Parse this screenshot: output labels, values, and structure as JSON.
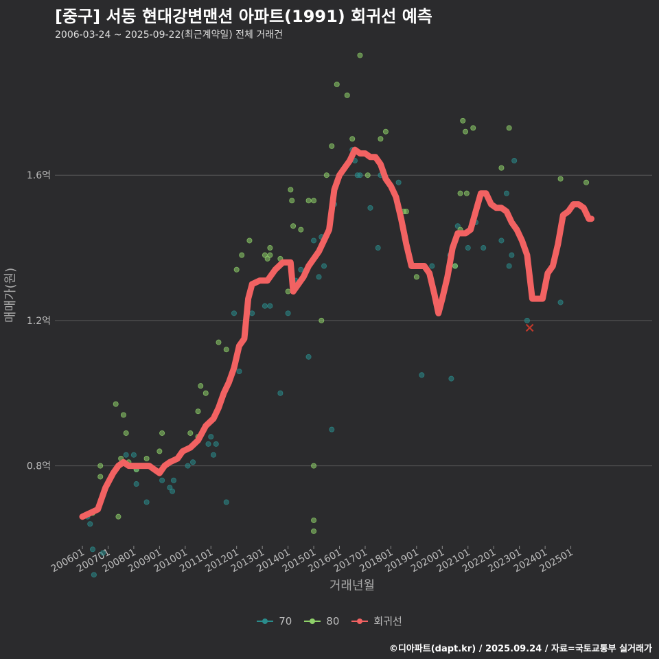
{
  "title": "[중구] 서동 현대강변맨션 아파트(1991) 회귀선 예측",
  "subtitle": "2006-03-24 ~ 2025-09-22(최근계약일) 전체 거래건",
  "credit": "©디아파트(dapt.kr) / 2025.09.24 / 자료=국토교통부 실거래가",
  "colors": {
    "s70": "#2a8c8c",
    "s80": "#8fd16a",
    "reg": "#f26262",
    "bg": "#2b2b2d",
    "grid": "#5a5a5a"
  },
  "legend": [
    {
      "label": "70",
      "color": "#2a8c8c"
    },
    {
      "label": "80",
      "color": "#8fd16a"
    },
    {
      "label": "회귀선",
      "color": "#f26262"
    }
  ],
  "chart_data": {
    "type": "scatter",
    "xlabel": "거래년월",
    "ylabel": "매매가(원)",
    "xlim": [
      2006.0,
      2025.9
    ],
    "ylim": [
      0.58,
      1.95
    ],
    "yticks": [
      {
        "value": 0.8,
        "label": "0.8억"
      },
      {
        "value": 1.2,
        "label": "1.2억"
      },
      {
        "value": 1.6,
        "label": "1.6억"
      }
    ],
    "xticks": [
      {
        "value": 2006.0,
        "label": "200601"
      },
      {
        "value": 2007.0,
        "label": "200701"
      },
      {
        "value": 2008.0,
        "label": "200801"
      },
      {
        "value": 2009.0,
        "label": "200901"
      },
      {
        "value": 2010.0,
        "label": "201001"
      },
      {
        "value": 2011.0,
        "label": "201101"
      },
      {
        "value": 2012.0,
        "label": "201201"
      },
      {
        "value": 2013.0,
        "label": "201301"
      },
      {
        "value": 2014.0,
        "label": "201401"
      },
      {
        "value": 2015.0,
        "label": "201501"
      },
      {
        "value": 2016.0,
        "label": "201601"
      },
      {
        "value": 2017.0,
        "label": "201701"
      },
      {
        "value": 2018.0,
        "label": "201801"
      },
      {
        "value": 2019.0,
        "label": "201901"
      },
      {
        "value": 2020.0,
        "label": "202001"
      },
      {
        "value": 2021.0,
        "label": "202101"
      },
      {
        "value": 2022.0,
        "label": "202201"
      },
      {
        "value": 2023.0,
        "label": "202301"
      },
      {
        "value": 2024.0,
        "label": "202401"
      },
      {
        "value": 2025.0,
        "label": "202501"
      }
    ],
    "series": [
      {
        "name": "70",
        "points": [
          [
            2006.2,
            0.66
          ],
          [
            2006.3,
            0.64
          ],
          [
            2006.4,
            0.57
          ],
          [
            2006.45,
            0.5
          ],
          [
            2006.6,
            0.68
          ],
          [
            2006.8,
            0.56
          ],
          [
            2007.7,
            0.83
          ],
          [
            2008.0,
            0.83
          ],
          [
            2008.1,
            0.79
          ],
          [
            2008.1,
            0.75
          ],
          [
            2008.5,
            0.7
          ],
          [
            2009.1,
            0.76
          ],
          [
            2009.4,
            0.74
          ],
          [
            2009.5,
            0.73
          ],
          [
            2009.55,
            0.76
          ],
          [
            2010.1,
            0.8
          ],
          [
            2010.3,
            0.81
          ],
          [
            2010.9,
            0.86
          ],
          [
            2011.0,
            0.88
          ],
          [
            2011.1,
            0.83
          ],
          [
            2011.2,
            0.86
          ],
          [
            2011.6,
            0.7
          ],
          [
            2011.9,
            1.22
          ],
          [
            2012.1,
            1.06
          ],
          [
            2012.6,
            1.22
          ],
          [
            2013.1,
            1.24
          ],
          [
            2013.3,
            1.24
          ],
          [
            2013.7,
            1.0
          ],
          [
            2014.0,
            1.22
          ],
          [
            2014.3,
            1.31
          ],
          [
            2014.5,
            1.34
          ],
          [
            2014.8,
            1.1
          ],
          [
            2015.0,
            1.42
          ],
          [
            2015.1,
            1.38
          ],
          [
            2015.2,
            1.32
          ],
          [
            2015.3,
            1.43
          ],
          [
            2015.4,
            1.35
          ],
          [
            2015.7,
            0.9
          ],
          [
            2015.8,
            1.56
          ],
          [
            2015.8,
            1.52
          ],
          [
            2016.5,
            1.67
          ],
          [
            2016.6,
            1.64
          ],
          [
            2016.7,
            1.6
          ],
          [
            2016.8,
            1.6
          ],
          [
            2017.2,
            1.51
          ],
          [
            2017.5,
            1.4
          ],
          [
            2017.6,
            1.6
          ],
          [
            2018.3,
            1.58
          ],
          [
            2019.2,
            1.05
          ],
          [
            2019.6,
            1.35
          ],
          [
            2020.3,
            1.38
          ],
          [
            2020.35,
            1.04
          ],
          [
            2020.5,
            1.35
          ],
          [
            2020.6,
            1.46
          ],
          [
            2021.0,
            1.4
          ],
          [
            2021.3,
            1.47
          ],
          [
            2021.6,
            1.4
          ],
          [
            2022.3,
            1.42
          ],
          [
            2022.5,
            1.55
          ],
          [
            2022.6,
            1.35
          ],
          [
            2022.7,
            1.38
          ],
          [
            2022.8,
            1.64
          ],
          [
            2023.3,
            1.2
          ],
          [
            2024.6,
            1.25
          ]
        ]
      },
      {
        "name": "80",
        "points": [
          [
            2006.4,
            0.67
          ],
          [
            2006.7,
            0.8
          ],
          [
            2006.7,
            0.77
          ],
          [
            2007.3,
            0.97
          ],
          [
            2007.4,
            0.66
          ],
          [
            2007.5,
            0.82
          ],
          [
            2007.6,
            0.94
          ],
          [
            2007.7,
            0.89
          ],
          [
            2007.8,
            0.81
          ],
          [
            2008.1,
            0.79
          ],
          [
            2008.5,
            0.82
          ],
          [
            2009.0,
            0.84
          ],
          [
            2009.1,
            0.89
          ],
          [
            2010.2,
            0.89
          ],
          [
            2010.5,
            0.88
          ],
          [
            2010.5,
            0.95
          ],
          [
            2010.6,
            1.02
          ],
          [
            2010.8,
            1.0
          ],
          [
            2011.3,
            1.14
          ],
          [
            2011.6,
            1.12
          ],
          [
            2012.0,
            1.34
          ],
          [
            2012.2,
            1.38
          ],
          [
            2012.5,
            1.42
          ],
          [
            2013.1,
            1.38
          ],
          [
            2013.2,
            1.37
          ],
          [
            2013.3,
            1.38
          ],
          [
            2013.3,
            1.4
          ],
          [
            2013.7,
            1.37
          ],
          [
            2014.0,
            1.28
          ],
          [
            2014.1,
            1.56
          ],
          [
            2014.15,
            1.53
          ],
          [
            2014.2,
            1.46
          ],
          [
            2014.5,
            1.45
          ],
          [
            2014.8,
            1.53
          ],
          [
            2015.0,
            1.53
          ],
          [
            2015.0,
            0.65
          ],
          [
            2015.0,
            0.62
          ],
          [
            2015.0,
            0.8
          ],
          [
            2015.3,
            1.2
          ],
          [
            2015.5,
            1.6
          ],
          [
            2015.7,
            1.68
          ],
          [
            2015.9,
            1.85
          ],
          [
            2016.3,
            1.82
          ],
          [
            2016.5,
            1.7
          ],
          [
            2016.8,
            1.93
          ],
          [
            2017.1,
            1.6
          ],
          [
            2017.6,
            1.7
          ],
          [
            2017.8,
            1.72
          ],
          [
            2018.5,
            1.5
          ],
          [
            2018.6,
            1.5
          ],
          [
            2019.0,
            1.32
          ],
          [
            2020.5,
            1.35
          ],
          [
            2020.7,
            1.45
          ],
          [
            2020.7,
            1.55
          ],
          [
            2020.8,
            1.75
          ],
          [
            2020.9,
            1.72
          ],
          [
            2020.95,
            1.55
          ],
          [
            2021.2,
            1.73
          ],
          [
            2022.3,
            1.62
          ],
          [
            2022.6,
            1.73
          ],
          [
            2024.6,
            1.59
          ],
          [
            2025.6,
            1.58
          ]
        ]
      }
    ],
    "regression": [
      [
        2006.0,
        0.66
      ],
      [
        2006.3,
        0.67
      ],
      [
        2006.6,
        0.68
      ],
      [
        2006.9,
        0.74
      ],
      [
        2007.2,
        0.78
      ],
      [
        2007.4,
        0.8
      ],
      [
        2007.6,
        0.81
      ],
      [
        2007.8,
        0.8
      ],
      [
        2008.0,
        0.8
      ],
      [
        2008.3,
        0.8
      ],
      [
        2008.6,
        0.8
      ],
      [
        2008.8,
        0.79
      ],
      [
        2009.0,
        0.78
      ],
      [
        2009.2,
        0.8
      ],
      [
        2009.4,
        0.81
      ],
      [
        2009.7,
        0.82
      ],
      [
        2009.9,
        0.84
      ],
      [
        2010.2,
        0.85
      ],
      [
        2010.5,
        0.87
      ],
      [
        2010.8,
        0.91
      ],
      [
        2011.1,
        0.93
      ],
      [
        2011.3,
        0.96
      ],
      [
        2011.5,
        1.0
      ],
      [
        2011.7,
        1.03
      ],
      [
        2011.9,
        1.07
      ],
      [
        2012.1,
        1.13
      ],
      [
        2012.3,
        1.15
      ],
      [
        2012.45,
        1.26
      ],
      [
        2012.6,
        1.3
      ],
      [
        2012.9,
        1.31
      ],
      [
        2013.2,
        1.31
      ],
      [
        2013.5,
        1.34
      ],
      [
        2013.8,
        1.36
      ],
      [
        2014.1,
        1.36
      ],
      [
        2014.2,
        1.28
      ],
      [
        2014.4,
        1.3
      ],
      [
        2014.6,
        1.32
      ],
      [
        2014.8,
        1.35
      ],
      [
        2015.0,
        1.37
      ],
      [
        2015.2,
        1.39
      ],
      [
        2015.4,
        1.42
      ],
      [
        2015.6,
        1.45
      ],
      [
        2015.8,
        1.56
      ],
      [
        2016.0,
        1.6
      ],
      [
        2016.2,
        1.62
      ],
      [
        2016.4,
        1.64
      ],
      [
        2016.6,
        1.67
      ],
      [
        2016.8,
        1.66
      ],
      [
        2017.0,
        1.66
      ],
      [
        2017.2,
        1.65
      ],
      [
        2017.4,
        1.65
      ],
      [
        2017.6,
        1.63
      ],
      [
        2017.8,
        1.59
      ],
      [
        2018.0,
        1.57
      ],
      [
        2018.2,
        1.54
      ],
      [
        2018.4,
        1.48
      ],
      [
        2018.6,
        1.41
      ],
      [
        2018.8,
        1.35
      ],
      [
        2019.0,
        1.35
      ],
      [
        2019.3,
        1.35
      ],
      [
        2019.5,
        1.33
      ],
      [
        2019.7,
        1.27
      ],
      [
        2019.85,
        1.22
      ],
      [
        2020.0,
        1.26
      ],
      [
        2020.2,
        1.32
      ],
      [
        2020.4,
        1.4
      ],
      [
        2020.6,
        1.44
      ],
      [
        2020.9,
        1.44
      ],
      [
        2021.1,
        1.45
      ],
      [
        2021.3,
        1.5
      ],
      [
        2021.5,
        1.55
      ],
      [
        2021.7,
        1.55
      ],
      [
        2021.9,
        1.52
      ],
      [
        2022.1,
        1.51
      ],
      [
        2022.3,
        1.51
      ],
      [
        2022.5,
        1.5
      ],
      [
        2022.7,
        1.47
      ],
      [
        2022.9,
        1.45
      ],
      [
        2023.1,
        1.42
      ],
      [
        2023.3,
        1.38
      ],
      [
        2023.5,
        1.26
      ],
      [
        2023.7,
        1.26
      ],
      [
        2023.9,
        1.26
      ],
      [
        2024.1,
        1.33
      ],
      [
        2024.3,
        1.35
      ],
      [
        2024.5,
        1.41
      ],
      [
        2024.7,
        1.49
      ],
      [
        2024.9,
        1.5
      ],
      [
        2025.1,
        1.52
      ],
      [
        2025.3,
        1.52
      ],
      [
        2025.5,
        1.51
      ],
      [
        2025.7,
        1.48
      ],
      [
        2025.8,
        1.48
      ]
    ],
    "latest_marker": [
      2023.4,
      1.18
    ]
  }
}
